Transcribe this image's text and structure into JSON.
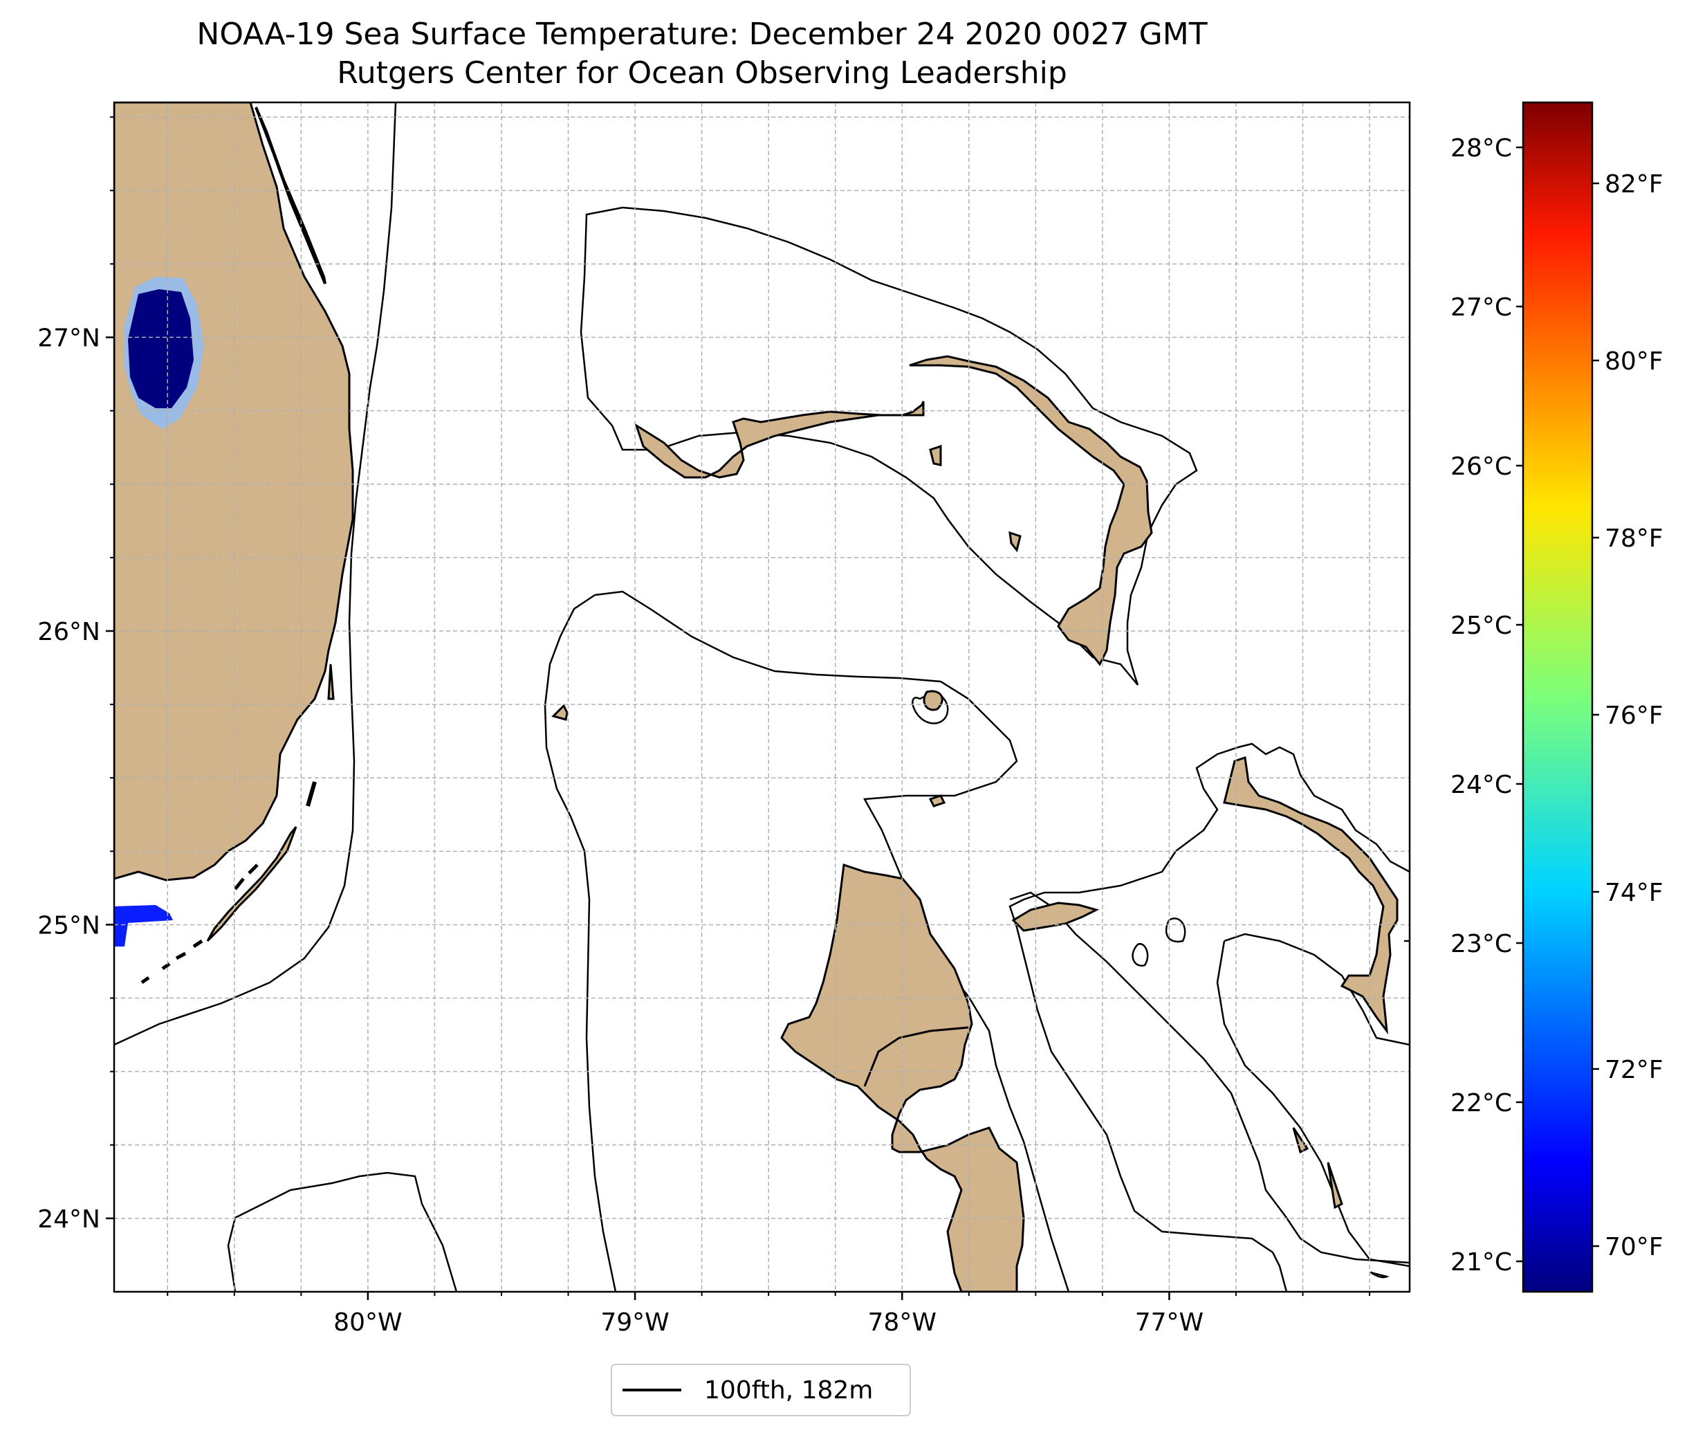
{
  "title": "NOAA-19 Sea Surface Temperature: December 24 2020 0027 GMT",
  "subtitle": "Rutgers Center for Ocean Observing Leadership",
  "map": {
    "lon_range": [
      -80.95,
      -76.1
    ],
    "lat_range": [
      23.75,
      27.8
    ],
    "lat_ticks": [
      {
        "value": 27,
        "label": "27°N"
      },
      {
        "value": 26,
        "label": "26°N"
      },
      {
        "value": 25,
        "label": "25°N"
      },
      {
        "value": 24,
        "label": "24°N"
      }
    ],
    "lon_ticks": [
      {
        "value": -80,
        "label": "80°W"
      },
      {
        "value": -79,
        "label": "79°W"
      },
      {
        "value": -78,
        "label": "78°W"
      },
      {
        "value": -77,
        "label": "77°W"
      }
    ],
    "gridlines": true,
    "land_color": "#d2b48c",
    "ocean_color": "#ffffff",
    "legend": {
      "label": "100fth, 182m",
      "placement": "bottom-center"
    }
  },
  "colorbar": {
    "colormap": "jet",
    "celsius_labels": [
      "28°C",
      "27°C",
      "26°C",
      "25°C",
      "24°C",
      "23°C",
      "22°C",
      "21°C"
    ],
    "fahrenheit_labels": [
      "82°F",
      "80°F",
      "78°F",
      "76°F",
      "74°F",
      "72°F",
      "70°F"
    ]
  },
  "sst_patches": [
    {
      "name": "lake-okeechobee",
      "dominant_temp_F": 69.5,
      "edge_temp_F": 73.5
    },
    {
      "name": "florida-bay",
      "dominant_temp_F": 71.5
    }
  ]
}
